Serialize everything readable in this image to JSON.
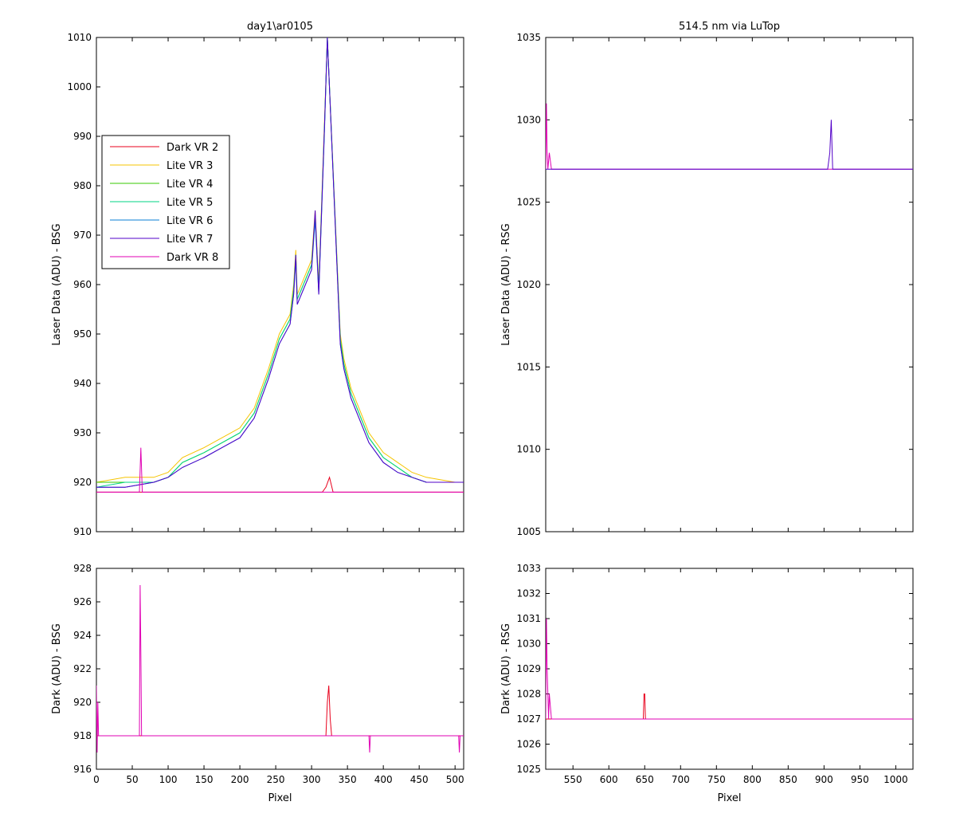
{
  "window": {
    "title": "day1\\ar0105"
  },
  "colors": {
    "Dark VR 2": "#e8001c",
    "Lite VR 3": "#f5c400",
    "Lite VR 4": "#37c800",
    "Lite VR 5": "#00d684",
    "Lite VR 6": "#0a7fd6",
    "Lite VR 7": "#5200c8",
    "Dark VR 8": "#e000b4"
  },
  "legend": [
    "Dark VR 2",
    "Lite VR 3",
    "Lite VR 4",
    "Lite VR 5",
    "Lite VR 6",
    "Lite VR 7",
    "Dark VR 8"
  ],
  "chart_data": [
    {
      "type": "line",
      "title": "day1\\ar0105",
      "xlabel": "",
      "ylabel": "Laser Data (ADU) - BSG",
      "xlim": [
        0,
        512
      ],
      "ylim": [
        910,
        1010
      ],
      "yticks": [
        910,
        920,
        930,
        940,
        950,
        960,
        970,
        980,
        990,
        1000,
        1010
      ],
      "xticks": [
        0,
        50,
        100,
        150,
        200,
        250,
        300,
        350,
        400,
        450,
        500
      ],
      "show_xticklabels": false,
      "legend": "upper-left",
      "series": [
        {
          "name": "Lite VR 3",
          "x": [
            0,
            40,
            80,
            100,
            120,
            150,
            175,
            200,
            220,
            240,
            255,
            270,
            275,
            278,
            280,
            300,
            305,
            310,
            318,
            322,
            340,
            345,
            355,
            380,
            400,
            420,
            440,
            460,
            500,
            512
          ],
          "y": [
            920,
            921,
            921,
            922,
            925,
            927,
            929,
            931,
            935,
            943,
            950,
            954,
            960,
            967,
            958,
            965,
            975,
            960,
            993,
            1010,
            950,
            945,
            939,
            930,
            926,
            924,
            922,
            921,
            920,
            920
          ]
        },
        {
          "name": "Lite VR 4",
          "x": [
            0,
            40,
            80,
            100,
            120,
            150,
            175,
            200,
            220,
            240,
            255,
            270,
            275,
            278,
            280,
            300,
            305,
            310,
            318,
            322,
            340,
            345,
            355,
            380,
            400,
            420,
            440,
            460,
            500,
            512
          ],
          "y": [
            920,
            920,
            920,
            921,
            924,
            926,
            928,
            930,
            934,
            942,
            949,
            953,
            959,
            966,
            957,
            964,
            974,
            959,
            992,
            1010,
            949,
            944,
            938,
            929,
            925,
            923,
            921,
            920,
            920,
            920
          ]
        },
        {
          "name": "Lite VR 5",
          "x": [
            0,
            40,
            80,
            100,
            120,
            150,
            175,
            200,
            220,
            240,
            255,
            270,
            275,
            278,
            280,
            300,
            305,
            310,
            318,
            322,
            340,
            345,
            355,
            380,
            400,
            420,
            440,
            460,
            500,
            512
          ],
          "y": [
            919,
            920,
            920,
            921,
            924,
            926,
            928,
            930,
            934,
            942,
            949,
            953,
            959,
            966,
            957,
            964,
            974,
            959,
            992,
            1010,
            949,
            944,
            938,
            929,
            925,
            923,
            921,
            920,
            920,
            920
          ]
        },
        {
          "name": "Lite VR 6",
          "x": [
            0,
            40,
            80,
            100,
            120,
            150,
            175,
            200,
            220,
            240,
            255,
            270,
            275,
            278,
            280,
            300,
            305,
            310,
            318,
            322,
            340,
            345,
            355,
            380,
            400,
            420,
            440,
            460,
            500,
            512
          ],
          "y": [
            919,
            919,
            920,
            921,
            923,
            925,
            927,
            929,
            933,
            941,
            948,
            952,
            958,
            965,
            956,
            963,
            973,
            958,
            991,
            1010,
            948,
            943,
            937,
            928,
            924,
            922,
            921,
            920,
            920,
            920
          ]
        },
        {
          "name": "Lite VR 7",
          "x": [
            0,
            40,
            80,
            100,
            120,
            150,
            175,
            200,
            220,
            240,
            255,
            270,
            275,
            278,
            280,
            300,
            305,
            310,
            318,
            322,
            340,
            345,
            355,
            380,
            400,
            420,
            440,
            460,
            500,
            512
          ],
          "y": [
            919,
            919,
            920,
            921,
            923,
            925,
            927,
            929,
            933,
            941,
            948,
            952,
            958,
            966,
            956,
            963,
            975,
            958,
            992,
            1010,
            948,
            943,
            937,
            928,
            924,
            922,
            921,
            920,
            920,
            920
          ]
        },
        {
          "name": "Dark VR 2",
          "x": [
            0,
            315,
            320,
            325,
            330,
            512
          ],
          "y": [
            918,
            918,
            919,
            921,
            918,
            918
          ]
        },
        {
          "name": "Dark VR 8",
          "x": [
            0,
            60,
            62,
            64,
            66,
            512
          ],
          "y": [
            918,
            918,
            927,
            918,
            918,
            918
          ]
        }
      ]
    },
    {
      "type": "line",
      "title": "514.5 nm via LuTop",
      "xlabel": "",
      "ylabel": "Laser Data (ADU) - RSG",
      "xlim": [
        512,
        1024
      ],
      "ylim": [
        1005,
        1035
      ],
      "yticks": [
        1005,
        1010,
        1015,
        1020,
        1025,
        1030,
        1035
      ],
      "xticks": [
        550,
        600,
        650,
        700,
        750,
        800,
        850,
        900,
        950,
        1000
      ],
      "show_xticklabels": false,
      "series": [
        {
          "name": "Dark VR 8",
          "x": [
            512,
            513,
            514,
            515,
            517,
            520,
            1024
          ],
          "y": [
            1027,
            1031,
            1028,
            1027,
            1028,
            1027,
            1027
          ]
        },
        {
          "name": "Lite VR 7",
          "x": [
            512,
            905,
            908,
            910,
            912,
            1024
          ],
          "y": [
            1027,
            1027,
            1028,
            1030,
            1027,
            1027
          ]
        }
      ]
    },
    {
      "type": "line",
      "title": "",
      "xlabel": "Pixel",
      "ylabel": "Dark (ADU) - BSG",
      "xlim": [
        0,
        512
      ],
      "ylim": [
        916,
        928
      ],
      "yticks": [
        916,
        918,
        920,
        922,
        924,
        926,
        928
      ],
      "xticks": [
        0,
        50,
        100,
        150,
        200,
        250,
        300,
        350,
        400,
        450,
        500
      ],
      "series": [
        {
          "name": "Dark VR 2",
          "x": [
            0,
            320,
            322,
            324,
            326,
            328,
            512
          ],
          "y": [
            918,
            918,
            920,
            921,
            919,
            918,
            918
          ]
        },
        {
          "name": "Dark VR 8",
          "x": [
            0,
            1,
            2,
            3,
            60,
            61,
            62,
            63,
            64,
            380,
            381,
            382,
            505,
            506,
            507,
            512
          ],
          "y": [
            921,
            917,
            920,
            918,
            918,
            927,
            923,
            918,
            918,
            918,
            917,
            918,
            918,
            917,
            918,
            918
          ]
        }
      ]
    },
    {
      "type": "line",
      "title": "",
      "xlabel": "Pixel",
      "ylabel": "Dark (ADU) - RSG",
      "xlim": [
        512,
        1024
      ],
      "ylim": [
        1025,
        1033
      ],
      "yticks": [
        1025,
        1026,
        1027,
        1028,
        1029,
        1030,
        1031,
        1032,
        1033
      ],
      "xticks": [
        550,
        600,
        650,
        700,
        750,
        800,
        850,
        900,
        950,
        1000
      ],
      "series": [
        {
          "name": "Dark VR 2",
          "x": [
            512,
            648,
            649,
            650,
            651,
            652,
            1024
          ],
          "y": [
            1027,
            1027,
            1028,
            1028,
            1027,
            1027,
            1027
          ]
        },
        {
          "name": "Dark VR 8",
          "x": [
            512,
            513,
            514,
            515,
            516,
            517,
            520,
            1024
          ],
          "y": [
            1027,
            1031,
            1029,
            1028,
            1027,
            1028,
            1027,
            1027
          ]
        }
      ]
    }
  ]
}
